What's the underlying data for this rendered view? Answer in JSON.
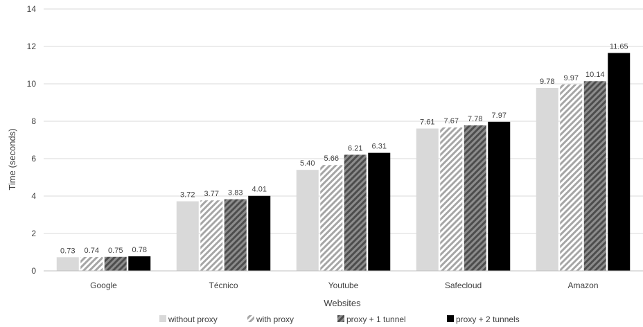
{
  "chart_data": {
    "type": "bar",
    "title": "",
    "xlabel": "Websites",
    "ylabel": "Time (seconds)",
    "ylim": [
      0,
      14
    ],
    "yticks": [
      0,
      2,
      4,
      6,
      8,
      10,
      12,
      14
    ],
    "grid": true,
    "legend_position": "bottom",
    "categories": [
      "Google",
      "Técnico",
      "Youtube",
      "Safecloud",
      "Amazon"
    ],
    "series": [
      {
        "name": "without proxy",
        "values": [
          0.73,
          3.72,
          5.4,
          7.61,
          9.78
        ],
        "labels": [
          "0.73",
          "3.72",
          "5.40",
          "7.61",
          "9.78"
        ],
        "color": "#d9d9d9",
        "pattern": "solid"
      },
      {
        "name": "with proxy",
        "values": [
          0.74,
          3.77,
          5.66,
          7.67,
          9.97
        ],
        "labels": [
          "0.74",
          "3.77",
          "5.66",
          "7.67",
          "9.97"
        ],
        "color": "#a6a6a6",
        "pattern": "light-diagonal-stripes"
      },
      {
        "name": "proxy + 1 tunnel",
        "values": [
          0.75,
          3.83,
          6.21,
          7.78,
          10.14
        ],
        "labels": [
          "0.75",
          "3.83",
          "6.21",
          "7.78",
          "10.14"
        ],
        "color": "#595959",
        "pattern": "dark-diagonal-stripes"
      },
      {
        "name": "proxy + 2 tunnels",
        "values": [
          0.78,
          4.01,
          6.31,
          7.97,
          11.65
        ],
        "labels": [
          "0.78",
          "4.01",
          "6.31",
          "7.97",
          "11.65"
        ],
        "color": "#000000",
        "pattern": "solid"
      }
    ]
  }
}
